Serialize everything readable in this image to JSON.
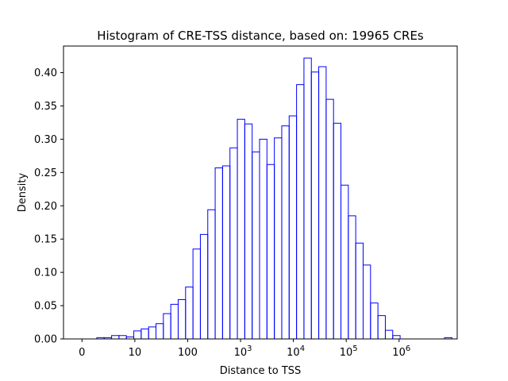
{
  "chart_data": {
    "type": "bar",
    "title": "Histogram of CRE-TSS distance, based on: 19965 CREs",
    "xlabel": "Distance to TSS",
    "ylabel": "Density",
    "ylim": [
      0,
      0.44
    ],
    "x_scale": "log10(distance + 1)",
    "xlim": [
      -0.35,
      7.1
    ],
    "grid": false,
    "legend": "none",
    "color": "#0000ff",
    "x_ticks": [
      {
        "value": 0,
        "base": "0",
        "exp": ""
      },
      {
        "value": 1,
        "base": "10",
        "exp": ""
      },
      {
        "value": 2,
        "base": "100",
        "exp": ""
      },
      {
        "value": 3,
        "base": "10",
        "exp": "3"
      },
      {
        "value": 4,
        "base": "10",
        "exp": "4"
      },
      {
        "value": 5,
        "base": "10",
        "exp": "5"
      },
      {
        "value": 6,
        "base": "10",
        "exp": "6"
      }
    ],
    "y_ticks": [
      "0.00",
      "0.05",
      "0.10",
      "0.15",
      "0.20",
      "0.25",
      "0.30",
      "0.35",
      "0.40"
    ],
    "bin_edges": [
      0.0,
      0.14,
      0.28,
      0.42,
      0.56,
      0.7,
      0.84,
      0.98,
      1.12,
      1.26,
      1.4,
      1.54,
      1.68,
      1.82,
      1.96,
      2.1,
      2.24,
      2.38,
      2.52,
      2.66,
      2.8,
      2.94,
      3.08,
      3.22,
      3.36,
      3.5,
      3.64,
      3.78,
      3.92,
      4.06,
      4.2,
      4.34,
      4.48,
      4.62,
      4.76,
      4.9,
      5.04,
      5.18,
      5.32,
      5.46,
      5.6,
      5.74,
      5.88,
      6.02,
      6.16,
      6.3,
      6.44,
      6.58,
      6.72,
      6.86,
      7.0
    ],
    "values": [
      0.0,
      0.0,
      0.002,
      0.002,
      0.005,
      0.005,
      0.003,
      0.012,
      0.015,
      0.018,
      0.023,
      0.038,
      0.052,
      0.059,
      0.078,
      0.135,
      0.157,
      0.194,
      0.257,
      0.26,
      0.287,
      0.33,
      0.323,
      0.281,
      0.3,
      0.262,
      0.302,
      0.32,
      0.335,
      0.382,
      0.422,
      0.401,
      0.409,
      0.36,
      0.324,
      0.231,
      0.185,
      0.144,
      0.111,
      0.054,
      0.035,
      0.013,
      0.005,
      0.0,
      0.0,
      0.0,
      0.0,
      0.0,
      0.0,
      0.002
    ]
  }
}
